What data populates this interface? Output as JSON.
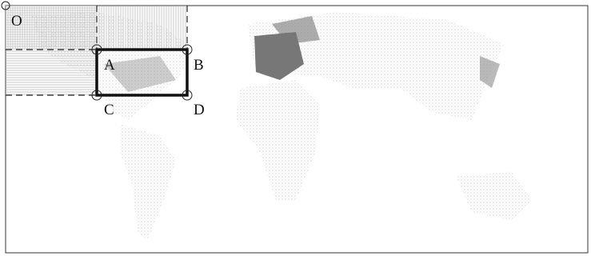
{
  "points": [
    {
      "label": "O"
    },
    {
      "label": "A"
    },
    {
      "label": "B"
    },
    {
      "label": "C"
    },
    {
      "label": "D"
    }
  ]
}
